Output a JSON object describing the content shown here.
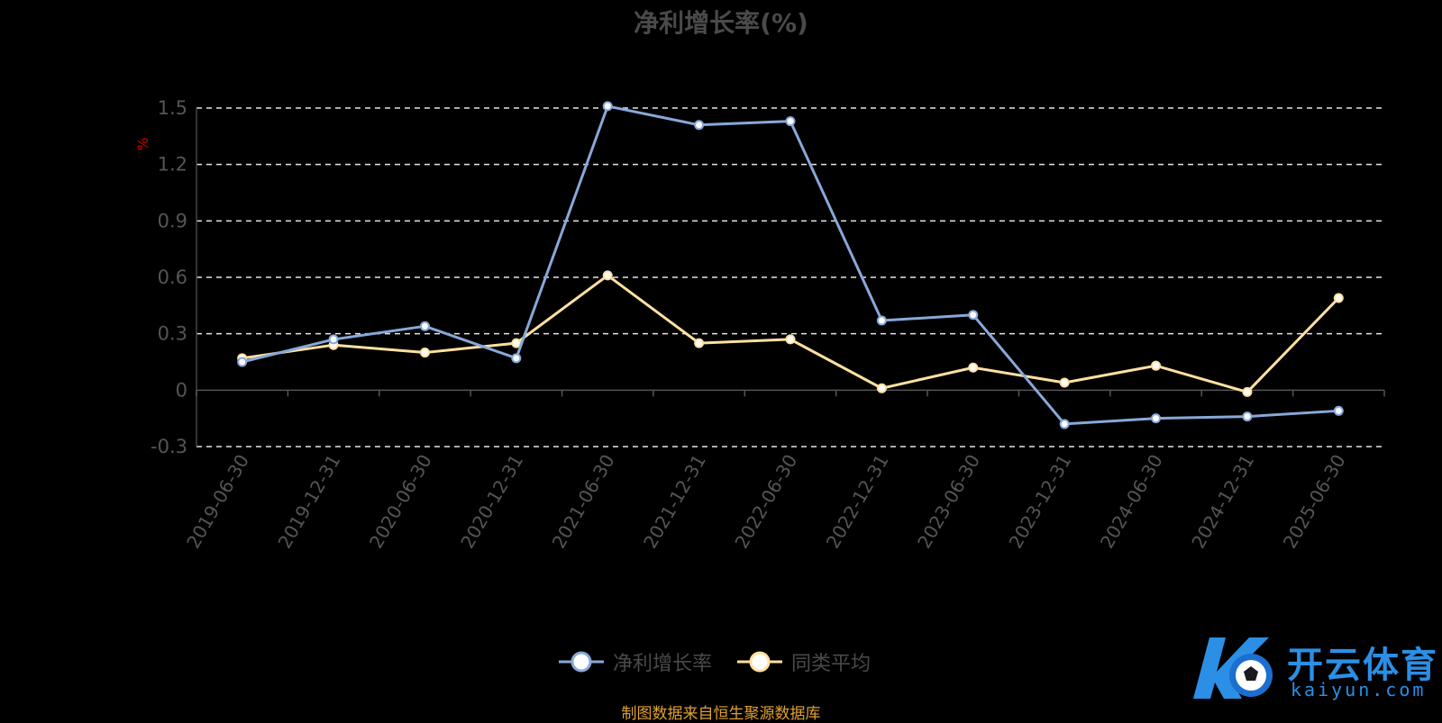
{
  "title": "净利增长率(%)",
  "source_note": "制图数据来自恒生聚源数据库",
  "logo": {
    "cn": "开云体育",
    "en": "kaiyun.com"
  },
  "legend": [
    {
      "label": "净利增长率",
      "color": "#88a8d8"
    },
    {
      "label": "同类平均",
      "color": "#ffe0a0"
    }
  ],
  "chart_data": {
    "type": "line",
    "title": "净利增长率(%)",
    "ylabel": "%",
    "ylim": [
      -0.3,
      1.5
    ],
    "yticks": [
      -0.3,
      0,
      0.3,
      0.6,
      0.9,
      1.2,
      1.5
    ],
    "grid": true,
    "legend_position": "bottom",
    "categories": [
      "2019-06-30",
      "2019-12-31",
      "2020-06-30",
      "2020-12-31",
      "2021-06-30",
      "2021-12-31",
      "2022-06-30",
      "2022-12-31",
      "2023-06-30",
      "2023-12-31",
      "2024-06-30",
      "2024-12-31",
      "2025-06-30"
    ],
    "series": [
      {
        "name": "净利增长率",
        "color": "#88a8d8",
        "values": [
          0.15,
          0.27,
          0.34,
          0.17,
          1.51,
          1.41,
          1.43,
          0.37,
          0.4,
          -0.18,
          -0.15,
          -0.14,
          -0.11
        ]
      },
      {
        "name": "同类平均",
        "color": "#ffe0a0",
        "values": [
          0.17,
          0.24,
          0.2,
          0.25,
          0.61,
          0.25,
          0.27,
          0.01,
          0.12,
          0.04,
          0.13,
          -0.01,
          0.49
        ]
      }
    ]
  }
}
